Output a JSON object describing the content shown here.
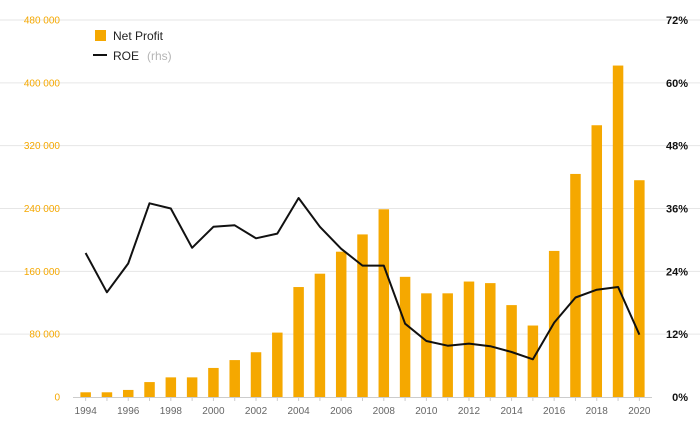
{
  "chart_data": {
    "type": "bar",
    "x": [
      "1994",
      "1995",
      "1996",
      "1997",
      "1998",
      "1999",
      "2000",
      "2001",
      "2002",
      "2003",
      "2004",
      "2005",
      "2006",
      "2007",
      "2008",
      "2009",
      "2010",
      "2011",
      "2012",
      "2013",
      "2014",
      "2015",
      "2016",
      "2017",
      "2018",
      "2019",
      "2020"
    ],
    "series": [
      {
        "name": "Net Profit",
        "type": "bar",
        "axis": "left",
        "color": "#f5a800",
        "values": [
          6000,
          6000,
          9000,
          19000,
          25000,
          25000,
          37000,
          47000,
          57000,
          82000,
          140000,
          157000,
          185000,
          207000,
          239000,
          153000,
          132000,
          132000,
          147000,
          145000,
          117000,
          91000,
          186000,
          284000,
          346000,
          422000,
          276000
        ]
      },
      {
        "name": "ROE",
        "name_suffix": "(rhs)",
        "type": "line",
        "axis": "right",
        "color": "#111111",
        "values": [
          27.5,
          20.0,
          25.5,
          37.0,
          36.0,
          28.5,
          32.5,
          32.8,
          30.3,
          31.2,
          38.0,
          32.5,
          28.3,
          25.1,
          25.1,
          14.0,
          10.7,
          9.8,
          10.2,
          9.7,
          8.6,
          7.2,
          14.2,
          19.0,
          20.5,
          21.0,
          11.9
        ]
      }
    ],
    "y_left": {
      "range": [
        0,
        480000
      ],
      "ticks": [
        0,
        80000,
        160000,
        240000,
        320000,
        400000,
        480000
      ],
      "tick_labels": [
        "0",
        "80 000",
        "160 000",
        "240 000",
        "320 000",
        "400 000",
        "480 000"
      ]
    },
    "y_right": {
      "range": [
        0,
        72
      ],
      "ticks": [
        0,
        12,
        24,
        36,
        48,
        60,
        72
      ],
      "tick_labels": [
        "0%",
        "12%",
        "24%",
        "36%",
        "48%",
        "60%",
        "72%"
      ]
    },
    "x_tick_labels": [
      "1994",
      "1996",
      "1998",
      "2000",
      "2002",
      "2004",
      "2006",
      "2008",
      "2010",
      "2012",
      "2014",
      "2016",
      "2018",
      "2020"
    ],
    "grid": true,
    "legend": "top-left",
    "title": "",
    "xlabel": "",
    "ylabel": ""
  },
  "legend": {
    "bar_label": "Net Profit",
    "line_label": "ROE",
    "line_suffix": "(rhs)"
  },
  "colors": {
    "bar": "#f5a800",
    "line": "#111111",
    "grid": "#e6e6e6",
    "axis": "#cccccc"
  }
}
